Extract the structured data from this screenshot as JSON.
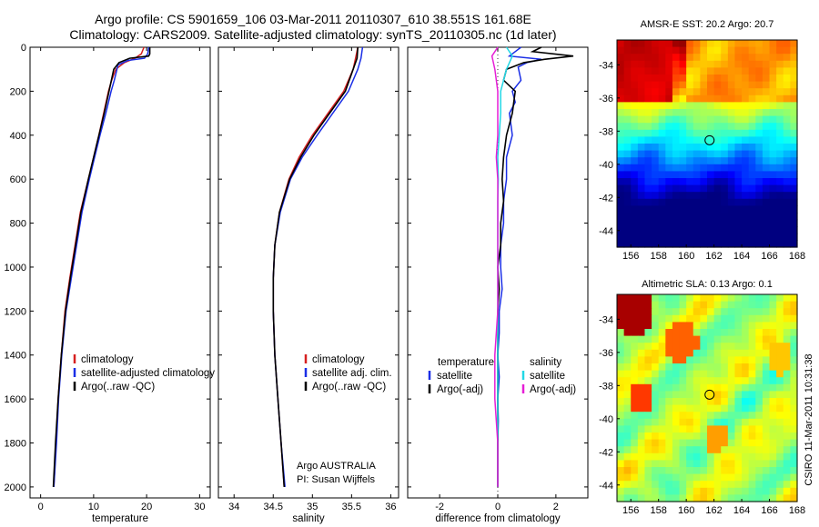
{
  "title_line1": "Argo profile: CS 5901659_106 03-Mar-2011 20110307_610 38.551S 161.68E",
  "title_line2": "Climatology: CARS2009. Satellite-adjusted climatology: synTS_20110305.nc (1d later)",
  "side_credit": "CSIRO 11-Mar-2011 10:31:38",
  "colors": {
    "climatology": "#d62020",
    "satellite": "#1a2ee6",
    "argo": "#000000",
    "sal_satellite": "#22d8e6",
    "sal_argo": "#e61ed6"
  },
  "chart_data": [
    {
      "type": "line",
      "xlabel": "temperature",
      "xlim": [
        -2,
        32
      ],
      "ylim": [
        2050,
        0
      ],
      "xticks": [
        "0",
        "10",
        "20",
        "30"
      ],
      "yticks": [
        "0",
        "200",
        "400",
        "600",
        "800",
        "1000",
        "1200",
        "1400",
        "1600",
        "1800",
        "2000"
      ],
      "legend": [
        "climatology",
        "satellite-adjusted climatology",
        "Argo(..raw -QC)"
      ],
      "series": [
        {
          "name": "climatology",
          "color": "climatology",
          "points": [
            [
              19.5,
              0
            ],
            [
              19,
              30
            ],
            [
              17.8,
              50
            ],
            [
              15.8,
              70
            ],
            [
              14.2,
              100
            ],
            [
              13.4,
              150
            ],
            [
              12.8,
              200
            ],
            [
              11.9,
              300
            ],
            [
              11,
              400
            ],
            [
              10,
              500
            ],
            [
              9,
              600
            ],
            [
              7.5,
              750
            ],
            [
              6.5,
              900
            ],
            [
              5.5,
              1050
            ],
            [
              4.6,
              1200
            ],
            [
              3.9,
              1400
            ],
            [
              3.3,
              1600
            ],
            [
              2.9,
              1800
            ],
            [
              2.5,
              2000
            ]
          ]
        },
        {
          "name": "satellite-adjusted climatology",
          "color": "satellite",
          "points": [
            [
              20.4,
              0
            ],
            [
              20.2,
              30
            ],
            [
              19.6,
              50
            ],
            [
              16.5,
              60
            ],
            [
              14.6,
              80
            ],
            [
              13.9,
              150
            ],
            [
              13.3,
              200
            ],
            [
              12.3,
              300
            ],
            [
              11.2,
              400
            ],
            [
              10.2,
              500
            ],
            [
              9.2,
              600
            ],
            [
              7.8,
              750
            ],
            [
              6.8,
              900
            ],
            [
              5.8,
              1050
            ],
            [
              4.8,
              1200
            ],
            [
              4,
              1400
            ],
            [
              3.4,
              1600
            ],
            [
              3,
              1800
            ],
            [
              2.5,
              2000
            ]
          ]
        },
        {
          "name": "Argo(..raw -QC)",
          "color": "argo",
          "points": [
            [
              20.6,
              0
            ],
            [
              20.6,
              30
            ],
            [
              20.4,
              40
            ],
            [
              16.8,
              50
            ],
            [
              14.8,
              70
            ],
            [
              13.8,
              100
            ],
            [
              12.9,
              200
            ],
            [
              12,
              300
            ],
            [
              11,
              400
            ],
            [
              10,
              500
            ],
            [
              9,
              600
            ],
            [
              7.6,
              750
            ],
            [
              6.6,
              900
            ],
            [
              5.6,
              1050
            ],
            [
              4.7,
              1200
            ],
            [
              3.9,
              1400
            ],
            [
              3.3,
              1600
            ],
            [
              2.8,
              1800
            ],
            [
              2.4,
              2000
            ]
          ]
        }
      ]
    },
    {
      "type": "line",
      "xlabel": "salinity",
      "xlim": [
        33.8,
        36.1
      ],
      "ylim": [
        2050,
        0
      ],
      "xticks": [
        "34",
        "34.5",
        "35",
        "35.5",
        "36"
      ],
      "legend": [
        "climatology",
        "satellite adj. clim.",
        "Argo(..raw -QC)"
      ],
      "annotation": [
        "Argo AUSTRALIA",
        "PI: Susan Wijffels"
      ],
      "series": [
        {
          "name": "climatology",
          "color": "climatology",
          "points": [
            [
              35.58,
              0
            ],
            [
              35.55,
              50
            ],
            [
              35.52,
              100
            ],
            [
              35.4,
              200
            ],
            [
              35.2,
              300
            ],
            [
              35,
              400
            ],
            [
              34.83,
              500
            ],
            [
              34.7,
              600
            ],
            [
              34.58,
              750
            ],
            [
              34.52,
              900
            ],
            [
              34.5,
              1050
            ],
            [
              34.5,
              1200
            ],
            [
              34.52,
              1400
            ],
            [
              34.56,
              1600
            ],
            [
              34.6,
              1800
            ],
            [
              34.64,
              2000
            ]
          ]
        },
        {
          "name": "satellite adj. clim.",
          "color": "satellite",
          "points": [
            [
              35.64,
              0
            ],
            [
              35.62,
              50
            ],
            [
              35.58,
              100
            ],
            [
              35.46,
              200
            ],
            [
              35.26,
              300
            ],
            [
              35.06,
              400
            ],
            [
              34.87,
              500
            ],
            [
              34.72,
              600
            ],
            [
              34.59,
              750
            ],
            [
              34.52,
              900
            ],
            [
              34.5,
              1050
            ],
            [
              34.5,
              1200
            ],
            [
              34.52,
              1400
            ],
            [
              34.56,
              1600
            ],
            [
              34.6,
              1800
            ],
            [
              34.65,
              2000
            ]
          ]
        },
        {
          "name": "Argo(..raw -QC)",
          "color": "argo",
          "points": [
            [
              35.58,
              0
            ],
            [
              35.57,
              50
            ],
            [
              35.52,
              100
            ],
            [
              35.42,
              200
            ],
            [
              35.22,
              300
            ],
            [
              35.02,
              400
            ],
            [
              34.85,
              500
            ],
            [
              34.71,
              600
            ],
            [
              34.58,
              750
            ],
            [
              34.52,
              900
            ],
            [
              34.5,
              1050
            ],
            [
              34.5,
              1200
            ],
            [
              34.52,
              1400
            ],
            [
              34.56,
              1600
            ],
            [
              34.6,
              1800
            ],
            [
              34.64,
              2000
            ]
          ]
        }
      ]
    },
    {
      "type": "line",
      "xlabel": "difference from climatology",
      "xlim": [
        -3.1,
        3.1
      ],
      "ylim": [
        2050,
        0
      ],
      "xticks": [
        "-2",
        "0",
        "2"
      ],
      "legend_temperature": [
        "temperature",
        "satellite",
        "Argo(-adj)"
      ],
      "legend_salinity": [
        "salinity",
        "satellite",
        "Argo(-adj)"
      ],
      "series": [
        {
          "name": "satellite",
          "group": "temperature",
          "color": "satellite",
          "points": [
            [
              0.8,
              0
            ],
            [
              0.6,
              20
            ],
            [
              0.4,
              40
            ],
            [
              1.5,
              55
            ],
            [
              1,
              70
            ],
            [
              0.7,
              90
            ],
            [
              0.8,
              150
            ],
            [
              0.5,
              200
            ],
            [
              0.6,
              250
            ],
            [
              0.4,
              300
            ],
            [
              0.5,
              400
            ],
            [
              0.3,
              500
            ],
            [
              0.3,
              600
            ],
            [
              0.2,
              700
            ],
            [
              0.2,
              800
            ],
            [
              0.1,
              900
            ],
            [
              0.1,
              1000
            ],
            [
              0.15,
              1100
            ],
            [
              0.05,
              1200
            ],
            [
              0.05,
              1300
            ],
            [
              0,
              1400
            ],
            [
              0.05,
              1500
            ],
            [
              0,
              1600
            ],
            [
              0.02,
              1700
            ],
            [
              0,
              1800
            ],
            [
              0,
              1900
            ],
            [
              0,
              2000
            ]
          ]
        },
        {
          "name": "Argo(-adj)",
          "group": "temperature",
          "color": "argo",
          "points": [
            [
              1.5,
              0
            ],
            [
              1.2,
              20
            ],
            [
              2.6,
              40
            ],
            [
              1.6,
              55
            ],
            [
              0.9,
              70
            ],
            [
              0.3,
              100
            ],
            [
              0.2,
              150
            ],
            [
              0.6,
              200
            ],
            [
              0.5,
              300
            ],
            [
              0.3,
              400
            ],
            [
              0.2,
              500
            ],
            [
              0.15,
              600
            ],
            [
              0.2,
              700
            ],
            [
              0.1,
              800
            ],
            [
              0.1,
              900
            ],
            [
              0,
              1000
            ],
            [
              0.05,
              1100
            ],
            [
              0,
              1200
            ],
            [
              0,
              1300
            ],
            [
              0,
              1400
            ],
            [
              0,
              1500
            ],
            [
              0,
              1600
            ],
            [
              0,
              1700
            ],
            [
              0,
              1800
            ],
            [
              0,
              1900
            ],
            [
              0,
              2000
            ]
          ]
        },
        {
          "name": "satellite",
          "group": "salinity",
          "color": "sal_satellite",
          "points": [
            [
              0.3,
              0
            ],
            [
              0.5,
              40
            ],
            [
              0.3,
              100
            ],
            [
              0.1,
              200
            ],
            [
              0.1,
              300
            ],
            [
              0.05,
              400
            ],
            [
              0,
              500
            ],
            [
              0.02,
              600
            ],
            [
              0,
              700
            ],
            [
              0,
              800
            ],
            [
              0,
              1000
            ],
            [
              0,
              1200
            ],
            [
              0,
              1400
            ],
            [
              0,
              1600
            ],
            [
              0,
              1800
            ],
            [
              0,
              2000
            ]
          ]
        },
        {
          "name": "Argo(-adj)",
          "group": "salinity",
          "color": "sal_argo",
          "points": [
            [
              0,
              0
            ],
            [
              -0.2,
              40
            ],
            [
              -0.1,
              100
            ],
            [
              0,
              200
            ],
            [
              0,
              300
            ],
            [
              0,
              400
            ],
            [
              -0.05,
              500
            ],
            [
              0,
              600
            ],
            [
              0,
              800
            ],
            [
              0,
              1000
            ],
            [
              0,
              1200
            ],
            [
              -0.1,
              1400
            ],
            [
              -0.1,
              1600
            ],
            [
              0,
              1800
            ],
            [
              0,
              2000
            ]
          ]
        }
      ]
    },
    {
      "type": "heatmap",
      "title": "AMSR-E SST: 20.2 Argo: 20.7",
      "xticks": [
        "156",
        "158",
        "160",
        "162",
        "164",
        "166",
        "168"
      ],
      "yticks": [
        "-34",
        "-36",
        "-38",
        "-40",
        "-42",
        "-44"
      ],
      "xlim": [
        155,
        168
      ],
      "ylim": [
        -45,
        -32.5
      ],
      "marker": {
        "lon": 161.68,
        "lat": -38.55
      }
    },
    {
      "type": "heatmap",
      "title": "Altimetric SLA: 0.13 Argo: 0.1",
      "xticks": [
        "156",
        "158",
        "160",
        "162",
        "164",
        "166",
        "168"
      ],
      "yticks": [
        "-34",
        "-36",
        "-38",
        "-40",
        "-42",
        "-44"
      ],
      "xlim": [
        155,
        168
      ],
      "ylim": [
        -45,
        -32.5
      ],
      "marker": {
        "lon": 161.68,
        "lat": -38.55
      }
    }
  ]
}
